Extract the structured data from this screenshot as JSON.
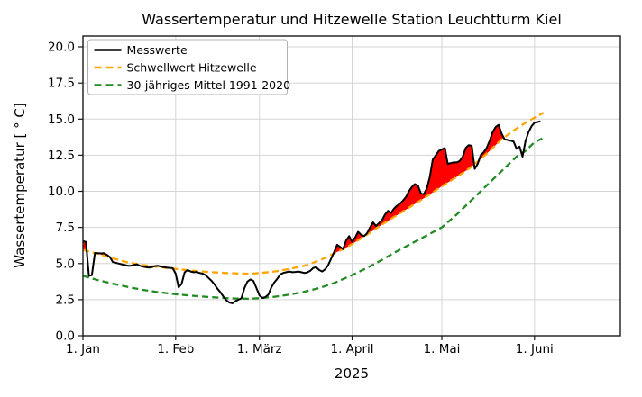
{
  "window": {
    "background": "#ffffff"
  },
  "chart_data": {
    "type": "line",
    "title": "Wassertemperatur und Hitzewelle Station Leuchtturm Kiel",
    "xlabel": "2025",
    "ylabel": "Wassertemperatur [ ° C]",
    "x_unit": "days_since_2025-01-01",
    "xlim": [
      0,
      179.7
    ],
    "ylim": [
      0,
      20.75
    ],
    "grid": true,
    "legend_position": "upper left",
    "x_ticks": [
      {
        "day": 0,
        "label": "1. Jan"
      },
      {
        "day": 31,
        "label": "1. Feb"
      },
      {
        "day": 59,
        "label": "1. März"
      },
      {
        "day": 90,
        "label": "1. April"
      },
      {
        "day": 120,
        "label": "1. Mai"
      },
      {
        "day": 151,
        "label": "1. Juni"
      }
    ],
    "y_tick_values": [
      0,
      2.5,
      5,
      7.5,
      10,
      12.5,
      15,
      17.5,
      20
    ],
    "y_tick_labels": [
      "0.0",
      "2.5",
      "5.0",
      "7.5",
      "10.0",
      "12.5",
      "15.0",
      "17.5",
      "20.0"
    ],
    "series": [
      {
        "name": "Messwerte",
        "color": "#000000",
        "line_style": "solid",
        "line_width": 2,
        "points": [
          [
            0,
            6.55
          ],
          [
            1,
            6.5
          ],
          [
            2,
            4.15
          ],
          [
            3,
            4.2
          ],
          [
            4,
            5.73
          ],
          [
            5,
            5.72
          ],
          [
            6,
            5.7
          ],
          [
            7,
            5.72
          ],
          [
            8,
            5.6
          ],
          [
            9,
            5.45
          ],
          [
            10,
            5.1
          ],
          [
            11,
            5.05
          ],
          [
            12,
            5.0
          ],
          [
            13,
            4.95
          ],
          [
            14,
            4.9
          ],
          [
            15,
            4.85
          ],
          [
            16,
            4.85
          ],
          [
            17,
            4.9
          ],
          [
            18,
            4.95
          ],
          [
            19,
            4.85
          ],
          [
            20,
            4.8
          ],
          [
            21,
            4.75
          ],
          [
            22,
            4.72
          ],
          [
            23,
            4.75
          ],
          [
            24,
            4.82
          ],
          [
            25,
            4.85
          ],
          [
            26,
            4.8
          ],
          [
            27,
            4.75
          ],
          [
            28,
            4.72
          ],
          [
            29,
            4.7
          ],
          [
            30,
            4.68
          ],
          [
            31,
            4.3
          ],
          [
            32,
            3.35
          ],
          [
            33,
            3.6
          ],
          [
            34,
            4.4
          ],
          [
            35,
            4.55
          ],
          [
            36,
            4.45
          ],
          [
            37,
            4.4
          ],
          [
            38,
            4.42
          ],
          [
            39,
            4.35
          ],
          [
            40,
            4.3
          ],
          [
            41,
            4.2
          ],
          [
            42,
            4.0
          ],
          [
            43,
            3.8
          ],
          [
            44,
            3.55
          ],
          [
            45,
            3.25
          ],
          [
            46,
            3.0
          ],
          [
            47,
            2.7
          ],
          [
            48,
            2.45
          ],
          [
            49,
            2.3
          ],
          [
            50,
            2.25
          ],
          [
            51,
            2.4
          ],
          [
            52,
            2.5
          ],
          [
            53,
            2.6
          ],
          [
            54,
            3.3
          ],
          [
            55,
            3.75
          ],
          [
            56,
            3.9
          ],
          [
            57,
            3.8
          ],
          [
            58,
            3.3
          ],
          [
            59,
            2.8
          ],
          [
            60,
            2.62
          ],
          [
            61,
            2.68
          ],
          [
            62,
            2.85
          ],
          [
            63,
            3.35
          ],
          [
            64,
            3.7
          ],
          [
            65,
            3.95
          ],
          [
            66,
            4.25
          ],
          [
            67,
            4.35
          ],
          [
            68,
            4.4
          ],
          [
            69,
            4.45
          ],
          [
            70,
            4.4
          ],
          [
            71,
            4.42
          ],
          [
            72,
            4.45
          ],
          [
            73,
            4.4
          ],
          [
            74,
            4.35
          ],
          [
            75,
            4.38
          ],
          [
            76,
            4.5
          ],
          [
            77,
            4.7
          ],
          [
            78,
            4.75
          ],
          [
            79,
            4.55
          ],
          [
            80,
            4.45
          ],
          [
            81,
            4.6
          ],
          [
            82,
            4.9
          ],
          [
            83,
            5.35
          ],
          [
            84,
            5.8
          ],
          [
            85,
            6.3
          ],
          [
            86,
            6.15
          ],
          [
            87,
            6.0
          ],
          [
            88,
            6.6
          ],
          [
            89,
            6.9
          ],
          [
            90,
            6.5
          ],
          [
            91,
            6.8
          ],
          [
            92,
            7.2
          ],
          [
            93,
            7.0
          ],
          [
            94,
            6.9
          ],
          [
            95,
            7.1
          ],
          [
            96,
            7.5
          ],
          [
            97,
            7.85
          ],
          [
            98,
            7.6
          ],
          [
            99,
            7.8
          ],
          [
            100,
            8.0
          ],
          [
            101,
            8.4
          ],
          [
            102,
            8.65
          ],
          [
            103,
            8.5
          ],
          [
            104,
            8.8
          ],
          [
            105,
            9.0
          ],
          [
            106,
            9.15
          ],
          [
            107,
            9.35
          ],
          [
            108,
            9.6
          ],
          [
            109,
            10.0
          ],
          [
            110,
            10.3
          ],
          [
            111,
            10.5
          ],
          [
            112,
            10.4
          ],
          [
            113,
            9.85
          ],
          [
            114,
            9.8
          ],
          [
            115,
            10.2
          ],
          [
            116,
            11.0
          ],
          [
            117,
            12.2
          ],
          [
            118,
            12.5
          ],
          [
            119,
            12.8
          ],
          [
            120,
            12.9
          ],
          [
            121,
            13.0
          ],
          [
            122,
            11.9
          ],
          [
            123,
            11.95
          ],
          [
            124,
            12.0
          ],
          [
            125,
            12.0
          ],
          [
            126,
            12.1
          ],
          [
            127,
            12.4
          ],
          [
            128,
            13.0
          ],
          [
            129,
            13.2
          ],
          [
            130,
            13.15
          ],
          [
            131,
            11.55
          ],
          [
            132,
            11.9
          ],
          [
            133,
            12.5
          ],
          [
            134,
            12.7
          ],
          [
            135,
            13.0
          ],
          [
            136,
            13.5
          ],
          [
            137,
            14.1
          ],
          [
            138,
            14.45
          ],
          [
            139,
            14.6
          ],
          [
            140,
            14.0
          ],
          [
            141,
            13.6
          ],
          [
            142,
            13.55
          ],
          [
            143,
            13.5
          ],
          [
            144,
            13.45
          ],
          [
            145,
            12.95
          ],
          [
            146,
            13.1
          ],
          [
            147,
            12.4
          ],
          [
            148,
            13.5
          ],
          [
            149,
            14.1
          ],
          [
            150,
            14.5
          ],
          [
            151,
            14.75
          ],
          [
            152,
            14.8
          ],
          [
            153,
            14.85
          ]
        ]
      },
      {
        "name": "Schwellwert Hitzewelle",
        "color": "#FFA500",
        "line_style": "dashed",
        "line_width": 2.3,
        "points": [
          [
            0,
            5.95
          ],
          [
            3,
            5.78
          ],
          [
            6,
            5.62
          ],
          [
            10,
            5.35
          ],
          [
            15,
            5.08
          ],
          [
            20,
            4.9
          ],
          [
            25,
            4.77
          ],
          [
            31,
            4.63
          ],
          [
            36,
            4.52
          ],
          [
            41,
            4.43
          ],
          [
            46,
            4.36
          ],
          [
            52,
            4.31
          ],
          [
            56,
            4.3
          ],
          [
            59,
            4.34
          ],
          [
            64,
            4.45
          ],
          [
            69,
            4.62
          ],
          [
            74,
            4.85
          ],
          [
            79,
            5.2
          ],
          [
            84,
            5.7
          ],
          [
            88,
            6.1
          ],
          [
            90,
            6.35
          ],
          [
            95,
            7.0
          ],
          [
            100,
            7.7
          ],
          [
            105,
            8.35
          ],
          [
            110,
            9.0
          ],
          [
            115,
            9.65
          ],
          [
            120,
            10.35
          ],
          [
            125,
            11.0
          ],
          [
            130,
            11.7
          ],
          [
            135,
            12.6
          ],
          [
            140,
            13.6
          ],
          [
            145,
            14.35
          ],
          [
            148,
            14.75
          ],
          [
            151,
            15.1
          ],
          [
            154,
            15.45
          ]
        ]
      },
      {
        "name": "30-jähriges Mittel 1991-2020",
        "color": "#228B22",
        "line_style": "dashed",
        "line_width": 2.3,
        "points": [
          [
            0,
            4.15
          ],
          [
            5,
            3.85
          ],
          [
            10,
            3.6
          ],
          [
            15,
            3.38
          ],
          [
            20,
            3.18
          ],
          [
            25,
            3.02
          ],
          [
            31,
            2.88
          ],
          [
            36,
            2.78
          ],
          [
            41,
            2.7
          ],
          [
            46,
            2.63
          ],
          [
            51,
            2.58
          ],
          [
            55,
            2.56
          ],
          [
            59,
            2.6
          ],
          [
            64,
            2.7
          ],
          [
            69,
            2.85
          ],
          [
            74,
            3.05
          ],
          [
            79,
            3.3
          ],
          [
            84,
            3.65
          ],
          [
            90,
            4.2
          ],
          [
            95,
            4.7
          ],
          [
            100,
            5.25
          ],
          [
            105,
            5.85
          ],
          [
            110,
            6.4
          ],
          [
            115,
            6.95
          ],
          [
            120,
            7.5
          ],
          [
            125,
            8.4
          ],
          [
            130,
            9.4
          ],
          [
            135,
            10.4
          ],
          [
            140,
            11.4
          ],
          [
            145,
            12.4
          ],
          [
            148,
            12.8
          ],
          [
            151,
            13.4
          ],
          [
            154,
            13.7
          ]
        ]
      }
    ],
    "heatwave_fill": {
      "color": "#FF0000",
      "between": [
        "Messwerte",
        "Schwellwert Hitzewelle"
      ],
      "condition": "Messwerte > Schwellwert Hitzewelle"
    }
  }
}
